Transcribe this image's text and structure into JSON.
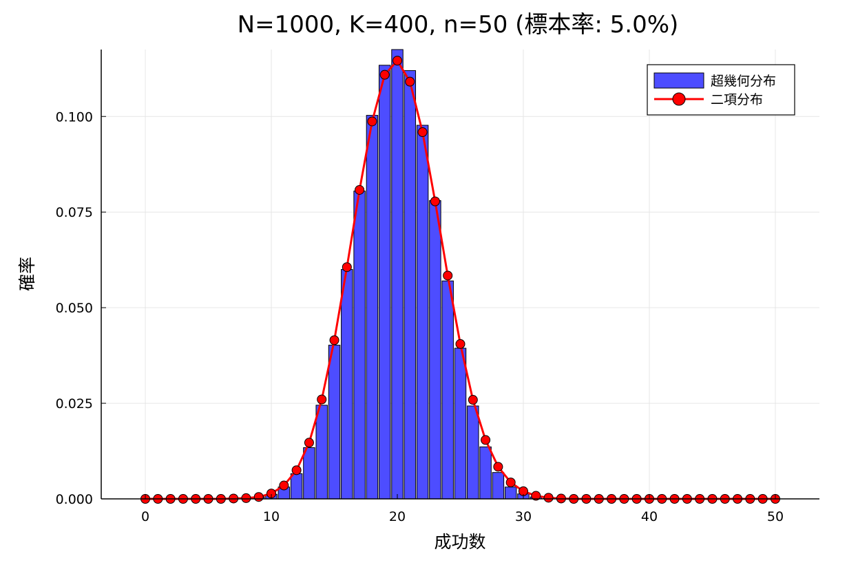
{
  "chart_data": {
    "type": "bar",
    "title": "N=1000, K=400, n=50 (標本率: 5.0%)",
    "xlabel": "成功数",
    "ylabel": "確率",
    "xlim": [
      -3.5,
      53.5
    ],
    "ylim": [
      0,
      0.1175
    ],
    "x_ticks": [
      "0",
      "10",
      "20",
      "30",
      "40",
      "50"
    ],
    "x_tick_values": [
      0,
      10,
      20,
      30,
      40,
      50
    ],
    "y_ticks": [
      "0.000",
      "0.025",
      "0.050",
      "0.075",
      "0.100"
    ],
    "y_tick_values": [
      0,
      0.025,
      0.05,
      0.075,
      0.1
    ],
    "grid": true,
    "legend_position": "top-right",
    "x": [
      0,
      1,
      2,
      3,
      4,
      5,
      6,
      7,
      8,
      9,
      10,
      11,
      12,
      13,
      14,
      15,
      16,
      17,
      18,
      19,
      20,
      21,
      22,
      23,
      24,
      25,
      26,
      27,
      28,
      29,
      30,
      31,
      32,
      33,
      34,
      35,
      36,
      37,
      38,
      39,
      40,
      41,
      42,
      43,
      44,
      45,
      46,
      47,
      48,
      49,
      50
    ],
    "series": [
      {
        "name": "超幾何分布",
        "type": "bar",
        "color": "#4d4dff",
        "values": [
          0,
          0,
          0,
          0,
          0,
          0,
          0,
          0.0001,
          0.0002,
          0.0005,
          0.0012,
          0.0031,
          0.0066,
          0.0134,
          0.0245,
          0.0402,
          0.06,
          0.0805,
          0.1003,
          0.1134,
          0.1175,
          0.112,
          0.0977,
          0.078,
          0.057,
          0.0394,
          0.0243,
          0.0136,
          0.0069,
          0.0031,
          0.0013,
          0.0005,
          0.0001,
          0,
          0,
          0,
          0,
          0,
          0,
          0,
          0,
          0,
          0,
          0,
          0,
          0,
          0,
          0,
          0,
          0,
          0
        ]
      },
      {
        "name": "二項分布",
        "type": "line",
        "color": "#ff0000",
        "values": [
          0,
          0,
          0,
          0,
          0,
          0,
          0,
          0.0001,
          0.0002,
          0.0005,
          0.0014,
          0.0035,
          0.0075,
          0.0147,
          0.026,
          0.0415,
          0.0606,
          0.0808,
          0.0987,
          0.1109,
          0.1146,
          0.1091,
          0.0959,
          0.0778,
          0.0584,
          0.0405,
          0.0259,
          0.0154,
          0.0084,
          0.0043,
          0.002,
          0.0008,
          0.0003,
          0.0001,
          0,
          0,
          0,
          0,
          0,
          0,
          0,
          0,
          0,
          0,
          0,
          0,
          0,
          0,
          0,
          0,
          0
        ]
      }
    ]
  }
}
